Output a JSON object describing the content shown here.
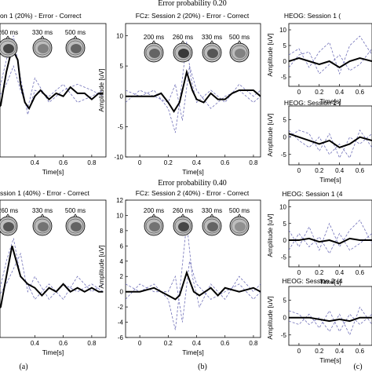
{
  "section_titles": [
    "Error probability 0.20",
    "Error probability 0.40"
  ],
  "panel_labels": [
    "(a)",
    "(b)",
    "(c)"
  ],
  "xlabel": "Time[s]",
  "colors": {
    "mean": "#000000",
    "sessions": "#7070b8",
    "head": "#606060"
  },
  "chart_data": [
    {
      "type": "line",
      "panel": "a-top",
      "title": "on 1 (20%) - Error - Correct",
      "topo_labels": [
        "260 ms",
        "330 ms",
        "500 ms"
      ],
      "topo_shades": [
        "#333333",
        "#777777",
        "#555555"
      ],
      "x_tick_labels": [
        "0.4",
        "0.6",
        "0.8"
      ],
      "xlim": [
        0.1,
        0.9
      ],
      "ylim": [
        -10,
        12
      ],
      "mean": {
        "x": [
          0.1,
          0.16,
          0.2,
          0.24,
          0.28,
          0.3,
          0.33,
          0.36,
          0.4,
          0.44,
          0.5,
          0.55,
          0.6,
          0.65,
          0.7,
          0.75,
          0.8,
          0.85,
          0.88
        ],
        "y": [
          -3,
          -1.5,
          4,
          8,
          6,
          2,
          -1,
          -2,
          0,
          1,
          -0.5,
          0.5,
          0,
          1.5,
          0.5,
          0.5,
          -0.5,
          0.5,
          0.5
        ]
      },
      "sessions": [
        {
          "x": [
            0.1,
            0.2,
            0.25,
            0.3,
            0.35,
            0.4,
            0.5,
            0.6,
            0.7,
            0.8,
            0.88
          ],
          "y": [
            -4,
            6,
            10,
            3,
            -3,
            1,
            0,
            2,
            -1,
            0,
            1
          ]
        },
        {
          "x": [
            0.1,
            0.2,
            0.25,
            0.3,
            0.35,
            0.4,
            0.5,
            0.6,
            0.7,
            0.8,
            0.88
          ],
          "y": [
            -2,
            2,
            5,
            1,
            -2,
            3,
            -1,
            1,
            2,
            1,
            0
          ]
        }
      ]
    },
    {
      "type": "line",
      "panel": "b-top",
      "title": "FCz: Session 2 (20%) - Error - Correct",
      "ylabel": "Amplitude [uV]",
      "topo_labels": [
        "200 ms",
        "260 ms",
        "330 ms",
        "500 ms"
      ],
      "topo_shades": [
        "#555555",
        "#222222",
        "#444444",
        "#777777"
      ],
      "x_tick_labels": [
        "0",
        "0.2",
        "0.4",
        "0.6",
        "0.8"
      ],
      "y_tick_labels": [
        "10",
        "5",
        "0",
        "-5",
        "-10"
      ],
      "xlim": [
        -0.1,
        0.85
      ],
      "ylim": [
        -10,
        12
      ],
      "mean": {
        "x": [
          -0.1,
          0,
          0.1,
          0.15,
          0.2,
          0.24,
          0.28,
          0.33,
          0.37,
          0.4,
          0.45,
          0.5,
          0.55,
          0.6,
          0.65,
          0.7,
          0.8,
          0.85
        ],
        "y": [
          0,
          0,
          0,
          0.5,
          -1,
          -2.5,
          -1,
          4,
          1,
          -0.5,
          -1,
          0.5,
          -0.5,
          -0.5,
          0.5,
          1,
          1,
          0
        ]
      },
      "sessions": [
        {
          "x": [
            -0.1,
            0,
            0.1,
            0.2,
            0.25,
            0.28,
            0.33,
            0.36,
            0.4,
            0.5,
            0.6,
            0.7,
            0.8,
            0.85
          ],
          "y": [
            1,
            0,
            1,
            -2,
            -6,
            -1,
            9,
            3,
            -1,
            1,
            -1,
            2,
            0,
            1
          ]
        },
        {
          "x": [
            -0.1,
            0,
            0.1,
            0.2,
            0.25,
            0.3,
            0.35,
            0.4,
            0.5,
            0.6,
            0.7,
            0.8,
            0.85
          ],
          "y": [
            -1,
            1,
            0,
            -1,
            2,
            -4,
            5,
            1,
            -2,
            0,
            1,
            -1,
            0
          ]
        }
      ]
    },
    {
      "type": "line",
      "panel": "c1",
      "title": "HEOG: Session 1 (",
      "ylabel": "Amplitude [uV]",
      "y_tick_labels": [
        "10",
        "5",
        "0",
        "-5"
      ],
      "x_tick_labels": [
        "0",
        "0.2",
        "0.4",
        "0.6"
      ],
      "xlim": [
        -0.1,
        0.72
      ],
      "ylim": [
        -8,
        12
      ],
      "mean": {
        "x": [
          -0.1,
          0,
          0.1,
          0.2,
          0.3,
          0.4,
          0.5,
          0.6,
          0.72
        ],
        "y": [
          0,
          1,
          0,
          -1,
          0,
          -2,
          0,
          1,
          0
        ]
      },
      "sessions": [
        {
          "x": [
            -0.1,
            0,
            0.1,
            0.2,
            0.3,
            0.4,
            0.5,
            0.6,
            0.72
          ],
          "y": [
            2,
            4,
            -2,
            3,
            6,
            -4,
            5,
            8,
            2
          ]
        },
        {
          "x": [
            -0.1,
            0,
            0.1,
            0.2,
            0.3,
            0.4,
            0.5,
            0.6,
            0.72
          ],
          "y": [
            -2,
            2,
            3,
            -4,
            -1,
            2,
            -3,
            -1,
            4
          ]
        }
      ]
    },
    {
      "type": "line",
      "panel": "c2",
      "title": "HEOG: Session 2 (",
      "ylabel": "Amplitude [uV]",
      "y_tick_labels": [
        "5",
        "0",
        "-5"
      ],
      "x_tick_labels": [
        "0",
        "0.2",
        "0.4",
        "0.6"
      ],
      "xlim": [
        -0.1,
        0.72
      ],
      "ylim": [
        -8,
        9
      ],
      "mean": {
        "x": [
          -0.1,
          0,
          0.1,
          0.2,
          0.3,
          0.4,
          0.5,
          0.6,
          0.72
        ],
        "y": [
          1,
          0,
          -1,
          -2,
          -1,
          -3,
          -2,
          0,
          -1
        ]
      },
      "sessions": [
        {
          "x": [
            -0.1,
            0,
            0.1,
            0.2,
            0.3,
            0.4,
            0.5,
            0.6,
            0.72
          ],
          "y": [
            2,
            -1,
            -3,
            0,
            -5,
            -2,
            -6,
            2,
            -3
          ]
        },
        {
          "x": [
            -0.1,
            0,
            0.1,
            0.2,
            0.3,
            0.4,
            0.5,
            0.6,
            0.72
          ],
          "y": [
            0,
            2,
            1,
            -4,
            1,
            -6,
            0,
            -2,
            1
          ]
        }
      ]
    },
    {
      "type": "line",
      "panel": "a-bottom",
      "title": "ssion 1 (40%) - Error - Correct",
      "topo_labels": [
        "260 ms",
        "330 ms",
        "500 ms"
      ],
      "topo_shades": [
        "#444444",
        "#666666",
        "#555555"
      ],
      "x_tick_labels": [
        "0.4",
        "0.6",
        "0.8"
      ],
      "xlim": [
        0.1,
        0.9
      ],
      "ylim": [
        -6,
        12
      ],
      "mean": {
        "x": [
          0.1,
          0.16,
          0.2,
          0.24,
          0.27,
          0.3,
          0.35,
          0.4,
          0.45,
          0.5,
          0.55,
          0.6,
          0.65,
          0.7,
          0.75,
          0.8,
          0.85,
          0.88
        ],
        "y": [
          -3,
          -2,
          2,
          6,
          4,
          2,
          1,
          0.5,
          -0.5,
          0.5,
          0,
          1,
          0,
          0.5,
          0,
          0.5,
          0,
          0
        ]
      },
      "sessions": [
        {
          "x": [
            0.1,
            0.2,
            0.25,
            0.3,
            0.35,
            0.4,
            0.5,
            0.6,
            0.7,
            0.8,
            0.88
          ],
          "y": [
            -4,
            4,
            7,
            2,
            1,
            -1,
            1,
            -1,
            2,
            0,
            1
          ]
        },
        {
          "x": [
            0.1,
            0.2,
            0.25,
            0.3,
            0.35,
            0.4,
            0.5,
            0.6,
            0.7,
            0.8,
            0.88
          ],
          "y": [
            -2,
            1,
            3,
            5,
            0,
            2,
            -1,
            1,
            0,
            1,
            0
          ]
        }
      ]
    },
    {
      "type": "line",
      "panel": "b-bottom",
      "title": "FCz: Session 2 (40%) - Error - Correct",
      "ylabel": "Amplitude [uV]",
      "topo_labels": [
        "200 ms",
        "260 ms",
        "330 ms",
        "500 ms"
      ],
      "topo_shades": [
        "#666666",
        "#333333",
        "#555555",
        "#888888"
      ],
      "x_tick_labels": [
        "0",
        "0.2",
        "0.4",
        "0.6",
        "0.8"
      ],
      "y_tick_labels": [
        "12",
        "10",
        "8",
        "6",
        "4",
        "2",
        "0",
        "-2",
        "-4",
        "-6"
      ],
      "xlim": [
        -0.1,
        0.85
      ],
      "ylim": [
        -6,
        12
      ],
      "mean": {
        "x": [
          -0.1,
          0,
          0.1,
          0.15,
          0.2,
          0.25,
          0.28,
          0.33,
          0.38,
          0.42,
          0.5,
          0.55,
          0.6,
          0.7,
          0.8,
          0.85
        ],
        "y": [
          0,
          0,
          0.5,
          0,
          -0.5,
          -1,
          -0.5,
          2.5,
          0,
          -0.5,
          0.5,
          -0.5,
          0.5,
          0,
          0.5,
          0
        ]
      },
      "sessions": [
        {
          "x": [
            -0.1,
            0,
            0.1,
            0.2,
            0.25,
            0.28,
            0.33,
            0.37,
            0.42,
            0.5,
            0.6,
            0.7,
            0.8,
            0.85
          ],
          "y": [
            1,
            0,
            1,
            -1,
            -5,
            0,
            9,
            2,
            -2,
            1,
            -1,
            2,
            0,
            1
          ]
        },
        {
          "x": [
            -0.1,
            0,
            0.1,
            0.2,
            0.25,
            0.3,
            0.35,
            0.4,
            0.5,
            0.6,
            0.7,
            0.8,
            0.85
          ],
          "y": [
            -1,
            1,
            0,
            0,
            2,
            -4,
            4,
            1,
            -1,
            0,
            1,
            -1,
            0
          ]
        }
      ]
    },
    {
      "type": "line",
      "panel": "c3",
      "title": "HEOG: Session 1 (4",
      "ylabel": "Amplitude [uV]",
      "y_tick_labels": [
        "10",
        "5",
        "0",
        "-5"
      ],
      "x_tick_labels": [
        "0",
        "0.2",
        "0.4",
        "0.6"
      ],
      "xlim": [
        -0.1,
        0.72
      ],
      "ylim": [
        -8,
        12
      ],
      "mean": {
        "x": [
          -0.1,
          0,
          0.1,
          0.2,
          0.3,
          0.4,
          0.5,
          0.6,
          0.72
        ],
        "y": [
          0,
          0,
          0.5,
          -0.5,
          0,
          -1,
          0.5,
          0,
          0
        ]
      },
      "sessions": [
        {
          "x": [
            -0.1,
            0,
            0.1,
            0.2,
            0.3,
            0.4,
            0.5,
            0.6,
            0.72
          ],
          "y": [
            3,
            -2,
            4,
            -3,
            5,
            -2,
            3,
            6,
            -1
          ]
        },
        {
          "x": [
            -0.1,
            0,
            0.1,
            0.2,
            0.3,
            0.4,
            0.5,
            0.6,
            0.72
          ],
          "y": [
            -3,
            2,
            -2,
            1,
            -4,
            2,
            -3,
            -1,
            2
          ]
        }
      ]
    },
    {
      "type": "line",
      "panel": "c4",
      "title": "HEOG: Session 2 (4",
      "ylabel": "Amplitude [uV]",
      "y_tick_labels": [
        "5",
        "0",
        "-5"
      ],
      "x_tick_labels": [
        "0",
        "0.2",
        "0.4",
        "0.6"
      ],
      "xlim": [
        -0.1,
        0.72
      ],
      "ylim": [
        -8,
        9
      ],
      "mean": {
        "x": [
          -0.1,
          0,
          0.1,
          0.2,
          0.3,
          0.4,
          0.5,
          0.6,
          0.72
        ],
        "y": [
          0,
          0,
          0,
          -0.5,
          -1,
          -0.5,
          -1,
          0,
          0
        ]
      },
      "sessions": [
        {
          "x": [
            -0.1,
            0,
            0.1,
            0.2,
            0.3,
            0.4,
            0.5,
            0.6,
            0.72
          ],
          "y": [
            2,
            1,
            -2,
            0,
            -4,
            1,
            -5,
            3,
            -2
          ]
        },
        {
          "x": [
            -0.1,
            0,
            0.1,
            0.2,
            0.3,
            0.4,
            0.5,
            0.6,
            0.72
          ],
          "y": [
            -1,
            -2,
            1,
            -3,
            2,
            -4,
            1,
            -2,
            1
          ]
        }
      ]
    }
  ]
}
